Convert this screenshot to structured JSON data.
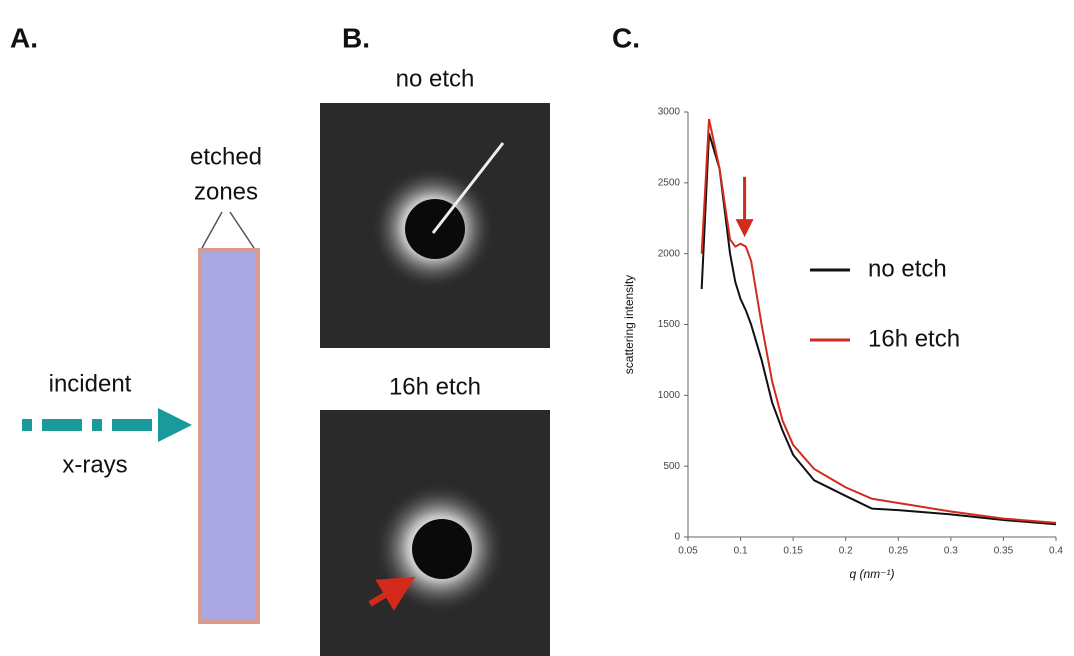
{
  "panels": {
    "a": {
      "label": "A.",
      "zones_label": [
        "etched",
        "zones"
      ],
      "beam_label": [
        "incident",
        "x-rays"
      ]
    },
    "b": {
      "label": "B.",
      "image_titles": [
        "no etch",
        "16h etch"
      ]
    },
    "c": {
      "label": "C."
    }
  },
  "chart_data": {
    "type": "line",
    "x_label": "q (nm⁻¹)",
    "y_label": "scattering intensity",
    "x": [
      0.063,
      0.07,
      0.08,
      0.09,
      0.095,
      0.1,
      0.105,
      0.11,
      0.12,
      0.13,
      0.14,
      0.15,
      0.17,
      0.2,
      0.225,
      0.25,
      0.3,
      0.35,
      0.4
    ],
    "series": [
      {
        "name": "no etch",
        "color": "#111111",
        "values": [
          1750,
          2850,
          2600,
          2000,
          1800,
          1680,
          1600,
          1500,
          1250,
          950,
          750,
          580,
          400,
          290,
          200,
          190,
          160,
          120,
          90
        ]
      },
      {
        "name": "16h etch",
        "color": "#d42a1c",
        "values": [
          2000,
          2950,
          2600,
          2100,
          2050,
          2070,
          2050,
          1950,
          1500,
          1100,
          820,
          650,
          480,
          350,
          270,
          240,
          180,
          130,
          100
        ]
      }
    ],
    "xlim": [
      0.05,
      0.4
    ],
    "xticks": [
      0.05,
      0.1,
      0.15,
      0.2,
      0.25,
      0.3,
      0.35,
      0.4
    ],
    "ylim": [
      0,
      3000
    ],
    "yticks": [
      0,
      500,
      1000,
      1500,
      2000,
      2500,
      3000
    ],
    "grid": false
  }
}
